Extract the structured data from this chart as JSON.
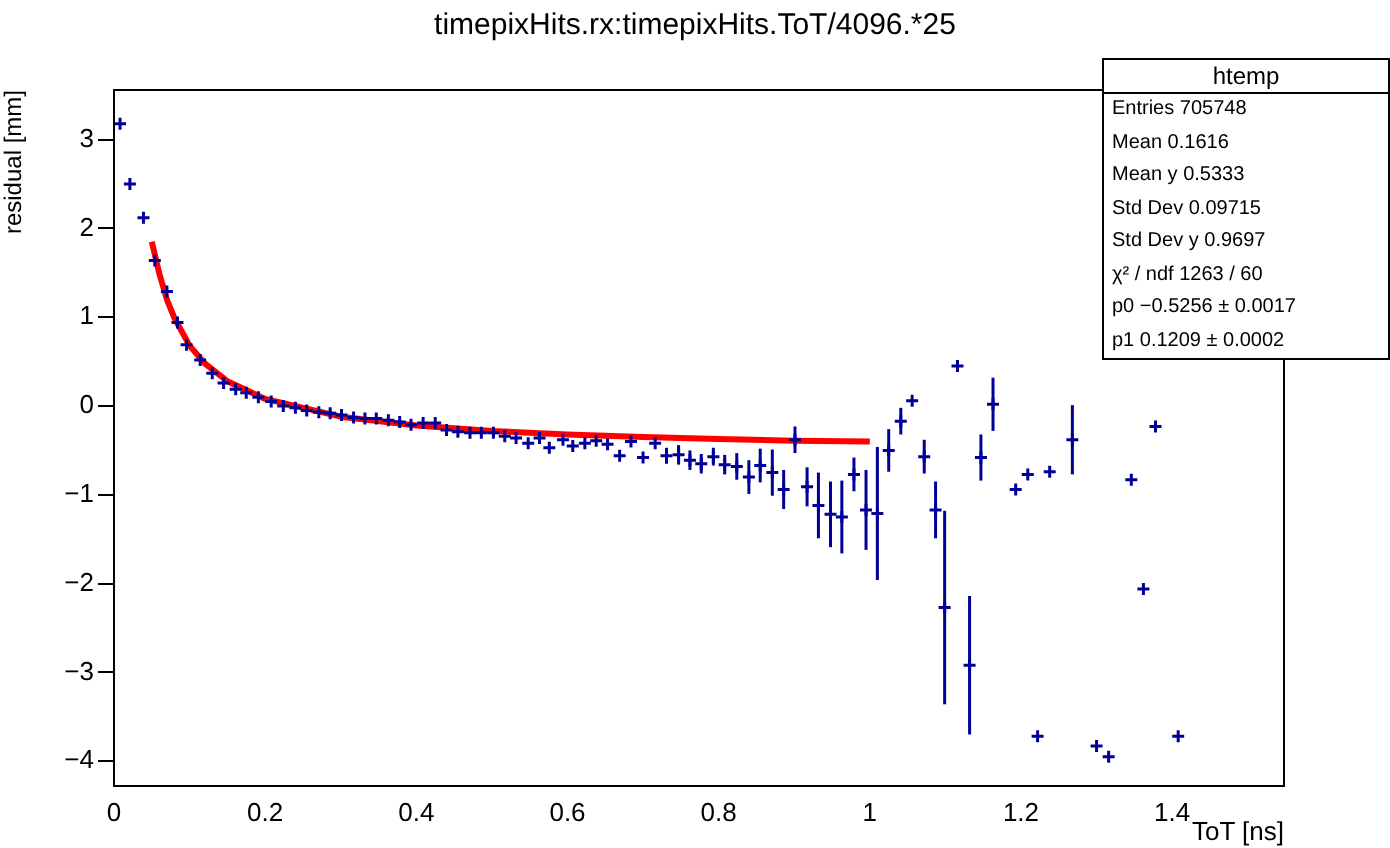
{
  "chart_data": {
    "type": "scatter",
    "title": "timepixHits.rx:timepixHits.ToT/4096.*25",
    "xlabel": "ToT [ns]",
    "ylabel": "residual [mm]",
    "series": [
      {
        "color": "#000099",
        "type": "scatter",
        "x": [
          0.008,
          0.021,
          0.039,
          0.054,
          0.07,
          0.084,
          0.096,
          0.114,
          0.13,
          0.145,
          0.161,
          0.175,
          0.191,
          0.208,
          0.224,
          0.24,
          0.255,
          0.271,
          0.286,
          0.301,
          0.317,
          0.332,
          0.347,
          0.363,
          0.378,
          0.393,
          0.409,
          0.425,
          0.44,
          0.455,
          0.471,
          0.486,
          0.502,
          0.517,
          0.532,
          0.548,
          0.563,
          0.576,
          0.594,
          0.607,
          0.623,
          0.638,
          0.653,
          0.669,
          0.684,
          0.7,
          0.716,
          0.731,
          0.747,
          0.762,
          0.777,
          0.793,
          0.808,
          0.824,
          0.84,
          0.855,
          0.871,
          0.886,
          0.901,
          0.917,
          0.932,
          0.948,
          0.963,
          0.979,
          0.995,
          1.01,
          1.025,
          1.041,
          1.056,
          1.072,
          1.087,
          1.099,
          1.116,
          1.132,
          1.147,
          1.163,
          1.193,
          1.209,
          1.222,
          1.238,
          1.268,
          1.3,
          1.316,
          1.346,
          1.362,
          1.378,
          1.408
        ],
        "values": [
          3.18,
          2.5,
          2.12,
          1.64,
          1.29,
          0.94,
          0.69,
          0.52,
          0.37,
          0.26,
          0.19,
          0.15,
          0.1,
          0.05,
          0.0,
          -0.02,
          -0.05,
          -0.07,
          -0.08,
          -0.1,
          -0.13,
          -0.14,
          -0.14,
          -0.16,
          -0.18,
          -0.21,
          -0.19,
          -0.19,
          -0.27,
          -0.29,
          -0.3,
          -0.3,
          -0.3,
          -0.34,
          -0.36,
          -0.42,
          -0.36,
          -0.47,
          -0.38,
          -0.45,
          -0.42,
          -0.39,
          -0.43,
          -0.56,
          -0.4,
          -0.58,
          -0.42,
          -0.56,
          -0.55,
          -0.61,
          -0.65,
          -0.57,
          -0.66,
          -0.68,
          -0.8,
          -0.67,
          -0.75,
          -0.94,
          -0.38,
          -0.91,
          -1.12,
          -1.22,
          -1.25,
          -0.77,
          -1.17,
          -1.21,
          -0.5,
          -0.17,
          0.06,
          -0.57,
          -1.17,
          -2.27,
          0.45,
          -2.92,
          -0.58,
          0.02,
          -0.94,
          -0.77,
          -3.72,
          -0.74,
          -0.38,
          -3.83,
          -3.95,
          -0.83,
          -2.06,
          -0.23,
          -3.72
        ],
        "errors": [
          null,
          null,
          null,
          null,
          null,
          null,
          null,
          null,
          null,
          null,
          null,
          null,
          null,
          null,
          null,
          null,
          null,
          null,
          null,
          null,
          null,
          null,
          null,
          null,
          null,
          null,
          null,
          null,
          null,
          null,
          null,
          null,
          null,
          null,
          null,
          null,
          null,
          null,
          null,
          null,
          null,
          null,
          null,
          null,
          null,
          null,
          null,
          0.09,
          0.11,
          0.11,
          0.11,
          0.1,
          0.11,
          0.15,
          0.19,
          0.19,
          0.26,
          0.22,
          0.15,
          0.22,
          0.37,
          0.37,
          0.41,
          0.19,
          0.45,
          0.75,
          0.24,
          0.15,
          null,
          0.19,
          0.32,
          1.09,
          null,
          0.78,
          0.26,
          0.3,
          null,
          null,
          null,
          null,
          0.39,
          null,
          null,
          null,
          null,
          null,
          null
        ]
      },
      {
        "color": "#ff0000",
        "type": "line",
        "marker": "none",
        "x": [
          0.05,
          0.06,
          0.07,
          0.08,
          0.1,
          0.12,
          0.15,
          0.2,
          0.3,
          0.4,
          0.5,
          0.6,
          0.7,
          0.8,
          0.9,
          1.0
        ],
        "values": [
          1.85,
          1.49,
          1.2,
          0.99,
          0.68,
          0.48,
          0.28,
          0.08,
          -0.12,
          -0.22,
          -0.28,
          -0.32,
          -0.35,
          -0.37,
          -0.39,
          -0.4
        ]
      }
    ],
    "marker": "cross",
    "legend": false,
    "grid": false,
    "xlim": [
      0,
      1.548
    ],
    "xticks": [
      0,
      0.2,
      0.4,
      0.6,
      0.8,
      1,
      1.2,
      1.4
    ],
    "ylim": [
      -4.28,
      3.56
    ],
    "yticks": [
      {
        "value": -4,
        "label": "−4"
      },
      {
        "value": -3,
        "label": "−3"
      },
      {
        "value": -2,
        "label": "−2"
      },
      {
        "value": -1,
        "label": "−1"
      },
      0,
      1,
      2,
      3
    ],
    "annotations": [
      "htemp",
      "Entries 705748",
      "Mean 0.1616",
      "Mean y 0.5333",
      "Std Dev 0.09715",
      "Std Dev y 0.9697",
      "χ² / ndf 1263 / 60",
      "p0 −0.5256 ± 0.0017",
      "p1 0.1209 ± 0.0002"
    ]
  }
}
